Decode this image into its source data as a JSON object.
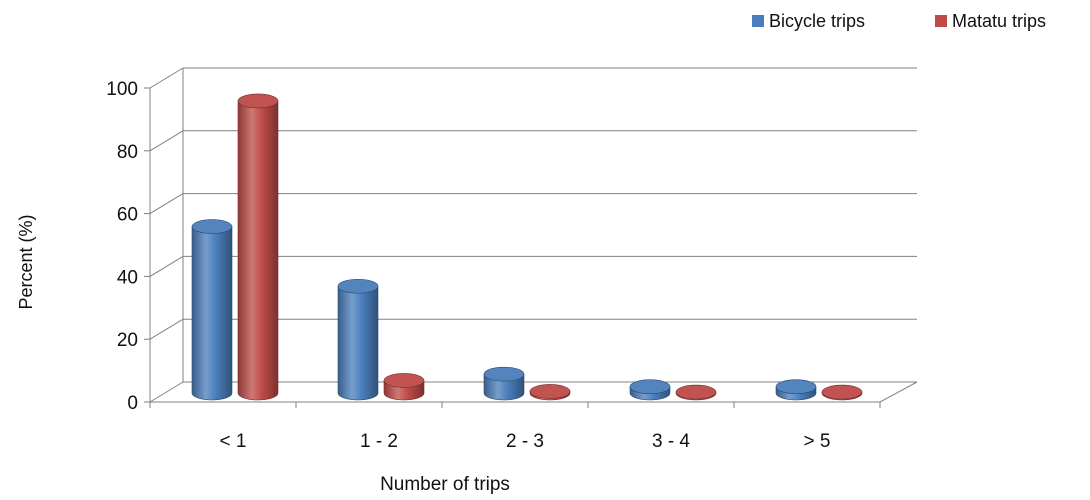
{
  "chart_data": {
    "type": "bar",
    "title": "",
    "xlabel": "Number of trips",
    "ylabel": "Percent (%)",
    "categories": [
      "< 1",
      "1 - 2",
      "2 - 3",
      "3 - 4",
      "> 5"
    ],
    "series": [
      {
        "name": "Bicycle trips",
        "values": [
          53,
          34,
          6,
          2,
          2
        ],
        "color": "#4a7ebb"
      },
      {
        "name": "Matatu trips",
        "values": [
          93,
          4,
          0.5,
          0.3,
          0.3
        ],
        "color": "#be4b48"
      }
    ],
    "ylim": [
      0,
      100
    ],
    "yticks": [
      "0",
      "20",
      "40",
      "60",
      "80",
      "100"
    ],
    "grid": true,
    "legend_position": "top-right",
    "style": "3d-cylinder"
  }
}
